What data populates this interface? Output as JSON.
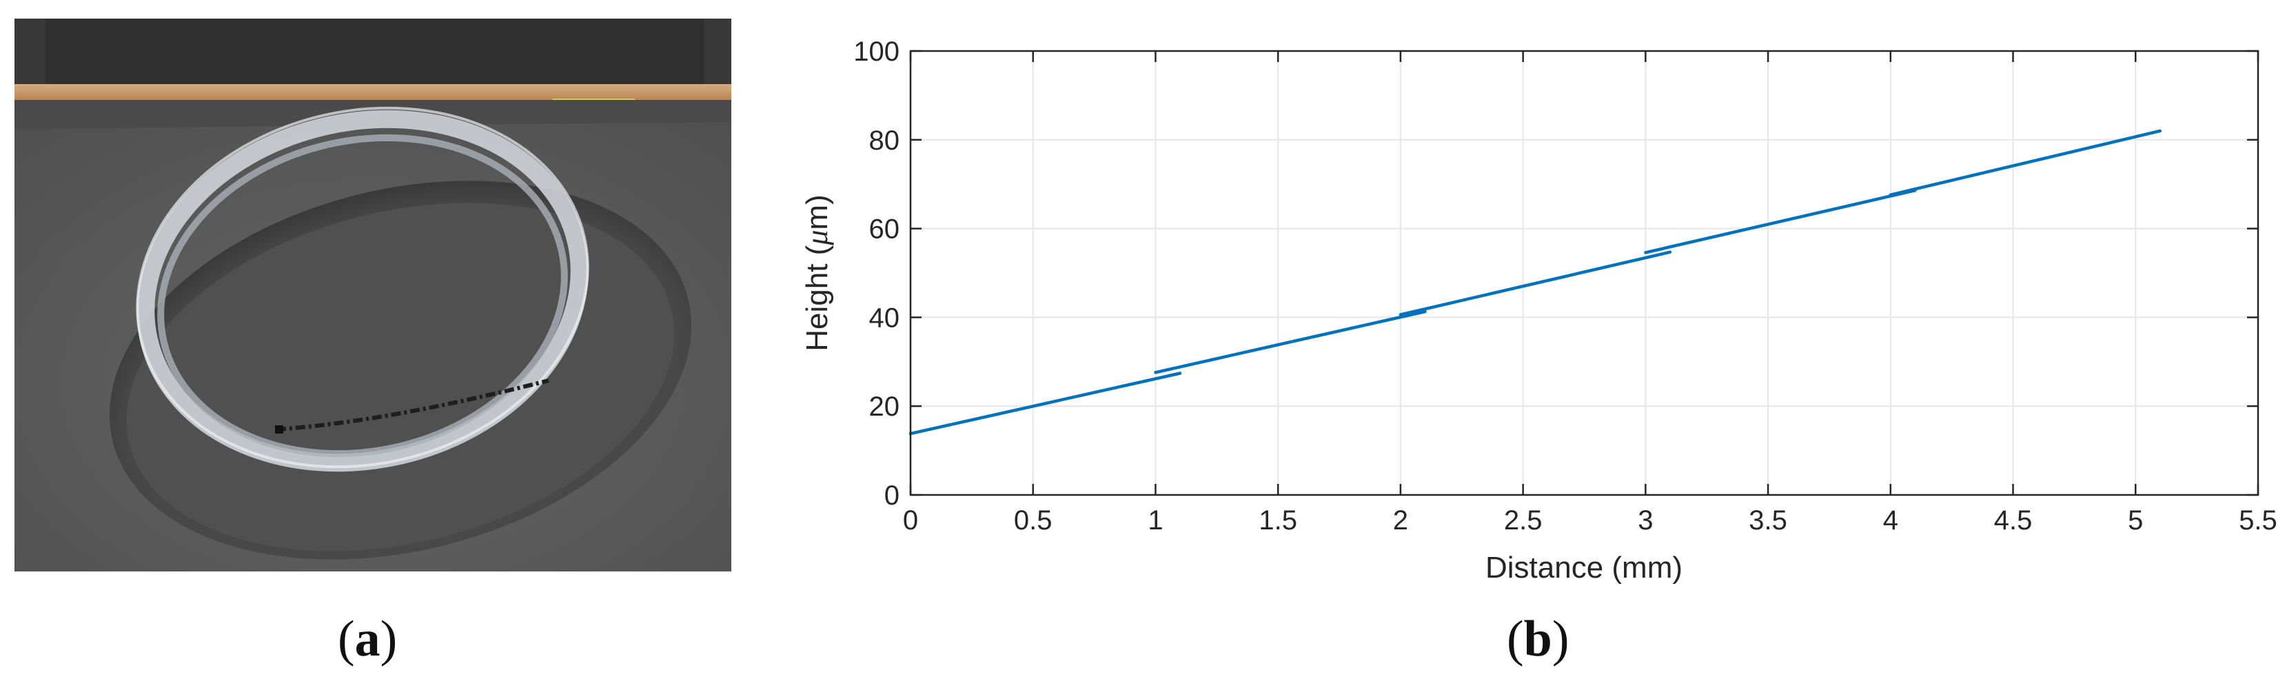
{
  "panels": [
    {
      "label_open": "(",
      "label_letter": "a",
      "label_close": ")"
    },
    {
      "label_open": "(",
      "label_letter": "b",
      "label_close": ")"
    }
  ],
  "photo": {
    "subject": "glass-ring-in-foam-case",
    "colors": {
      "foam": "#5d5d5d",
      "lid": "#3a3a3a",
      "wood": "#c99a6b",
      "glass": "#c9ced2"
    }
  },
  "chart_data": {
    "type": "line",
    "xlabel": "Distance (mm)",
    "ylabel_prefix": "Height (",
    "ylabel_symbol": "μ",
    "ylabel_suffix": "m)",
    "xlim": [
      0,
      5.5
    ],
    "ylim": [
      0,
      100
    ],
    "xticks": [
      0,
      0.5,
      1,
      1.5,
      2,
      2.5,
      3,
      3.5,
      4,
      4.5,
      5,
      5.5
    ],
    "xtick_labels": [
      "0",
      "0.5",
      "1",
      "1.5",
      "2",
      "2.5",
      "3",
      "3.5",
      "4",
      "4.5",
      "5",
      "5.5"
    ],
    "yticks": [
      0,
      20,
      40,
      60,
      80,
      100
    ],
    "ytick_labels": [
      "0",
      "20",
      "40",
      "60",
      "80",
      "100"
    ],
    "grid": true,
    "line_color": "#0072bd",
    "segments": [
      {
        "x": [
          0,
          1.1
        ],
        "y": [
          13.8,
          27.4
        ]
      },
      {
        "x": [
          1.0,
          2.1
        ],
        "y": [
          27.6,
          41.3
        ]
      },
      {
        "x": [
          2.0,
          3.1
        ],
        "y": [
          40.6,
          54.7
        ]
      },
      {
        "x": [
          3.0,
          4.1
        ],
        "y": [
          54.6,
          68.6
        ]
      },
      {
        "x": [
          4.0,
          5.1
        ],
        "y": [
          67.6,
          82.0
        ]
      }
    ]
  }
}
